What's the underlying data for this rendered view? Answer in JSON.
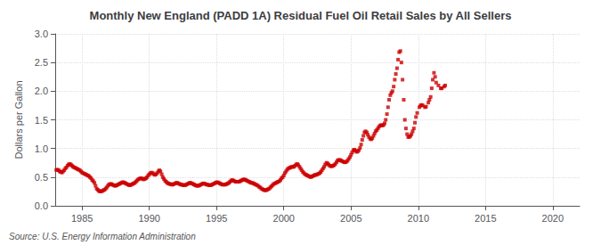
{
  "chart_data": {
    "type": "scatter",
    "title": "Monthly New England (PADD 1A) Residual Fuel Oil Retail Sales by All Sellers",
    "ylabel": "Dollars per Gallon",
    "annotation": "Source: U.S. Energy Information Administration",
    "color": "#cc0000",
    "marker": "square",
    "grid": true,
    "xlim": [
      1983.0,
      2022.0
    ],
    "ylim": [
      0.0,
      3.0
    ],
    "xticks": [
      1985,
      1990,
      1995,
      2000,
      2005,
      2010,
      2015,
      2020
    ],
    "yticks": [
      {
        "value": 0.0,
        "label": "0.0"
      },
      0.5,
      {
        "value": 1.0,
        "label": "1.0"
      },
      1.5,
      {
        "value": 2.0,
        "label": "2.0"
      },
      2.5,
      {
        "value": 3.0,
        "label": "3.0"
      }
    ],
    "x": [
      1983.08,
      1983.17,
      1983.25,
      1983.33,
      1983.42,
      1983.5,
      1983.58,
      1983.67,
      1983.75,
      1983.83,
      1983.92,
      1984.0,
      1984.08,
      1984.17,
      1984.25,
      1984.33,
      1984.42,
      1984.5,
      1984.58,
      1984.67,
      1984.75,
      1984.83,
      1984.92,
      1985.0,
      1985.08,
      1985.17,
      1985.25,
      1985.33,
      1985.42,
      1985.5,
      1985.58,
      1985.67,
      1985.75,
      1985.83,
      1985.92,
      1986.0,
      1986.08,
      1986.17,
      1986.25,
      1986.33,
      1986.42,
      1986.5,
      1986.58,
      1986.67,
      1986.75,
      1986.83,
      1986.92,
      1987.0,
      1987.08,
      1987.17,
      1987.25,
      1987.33,
      1987.42,
      1987.5,
      1987.58,
      1987.67,
      1987.75,
      1987.83,
      1987.92,
      1988.0,
      1988.08,
      1988.17,
      1988.25,
      1988.33,
      1988.42,
      1988.5,
      1988.58,
      1988.67,
      1988.75,
      1988.83,
      1988.92,
      1989.0,
      1989.08,
      1989.17,
      1989.25,
      1989.33,
      1989.42,
      1989.5,
      1989.58,
      1989.67,
      1989.75,
      1989.83,
      1989.92,
      1990.0,
      1990.08,
      1990.17,
      1990.25,
      1990.33,
      1990.42,
      1990.5,
      1990.58,
      1990.67,
      1990.75,
      1990.83,
      1990.92,
      1991.0,
      1991.08,
      1991.17,
      1991.25,
      1991.33,
      1991.42,
      1991.5,
      1991.58,
      1991.67,
      1991.75,
      1991.83,
      1991.92,
      1992.0,
      1992.08,
      1992.17,
      1992.25,
      1992.33,
      1992.42,
      1992.5,
      1992.58,
      1992.67,
      1992.75,
      1992.83,
      1992.92,
      1993.0,
      1993.08,
      1993.17,
      1993.25,
      1993.33,
      1993.42,
      1993.5,
      1993.58,
      1993.67,
      1993.75,
      1993.83,
      1993.92,
      1994.0,
      1994.08,
      1994.17,
      1994.25,
      1994.33,
      1994.42,
      1994.5,
      1994.58,
      1994.67,
      1994.75,
      1994.83,
      1994.92,
      1995.0,
      1995.08,
      1995.17,
      1995.25,
      1995.33,
      1995.42,
      1995.5,
      1995.58,
      1995.67,
      1995.75,
      1995.83,
      1995.92,
      1996.0,
      1996.08,
      1996.17,
      1996.25,
      1996.33,
      1996.42,
      1996.5,
      1996.58,
      1996.67,
      1996.75,
      1996.83,
      1996.92,
      1997.0,
      1997.08,
      1997.17,
      1997.25,
      1997.33,
      1997.42,
      1997.5,
      1997.58,
      1997.67,
      1997.75,
      1997.83,
      1997.92,
      1998.0,
      1998.08,
      1998.17,
      1998.25,
      1998.33,
      1998.42,
      1998.5,
      1998.58,
      1998.67,
      1998.75,
      1998.83,
      1998.92,
      1999.0,
      1999.08,
      1999.17,
      1999.25,
      1999.33,
      1999.42,
      1999.5,
      1999.58,
      1999.67,
      1999.75,
      1999.83,
      1999.92,
      2000.0,
      2000.08,
      2000.17,
      2000.25,
      2000.33,
      2000.42,
      2000.5,
      2000.58,
      2000.67,
      2000.75,
      2000.83,
      2000.92,
      2001.0,
      2001.08,
      2001.17,
      2001.25,
      2001.33,
      2001.42,
      2001.5,
      2001.58,
      2001.67,
      2001.75,
      2001.83,
      2001.92,
      2002.0,
      2002.08,
      2002.17,
      2002.25,
      2002.33,
      2002.42,
      2002.5,
      2002.58,
      2002.67,
      2002.75,
      2002.83,
      2002.92,
      2003.0,
      2003.08,
      2003.17,
      2003.25,
      2003.33,
      2003.42,
      2003.5,
      2003.58,
      2003.67,
      2003.75,
      2003.83,
      2003.92,
      2004.0,
      2004.08,
      2004.17,
      2004.25,
      2004.33,
      2004.42,
      2004.5,
      2004.58,
      2004.67,
      2004.75,
      2004.83,
      2004.92,
      2005.0,
      2005.08,
      2005.17,
      2005.25,
      2005.33,
      2005.42,
      2005.5,
      2005.58,
      2005.67,
      2005.75,
      2005.83,
      2005.92,
      2006.0,
      2006.08,
      2006.17,
      2006.25,
      2006.33,
      2006.42,
      2006.5,
      2006.58,
      2006.67,
      2006.75,
      2006.83,
      2006.92,
      2007.0,
      2007.08,
      2007.17,
      2007.25,
      2007.33,
      2007.42,
      2007.5,
      2007.58,
      2007.67,
      2007.75,
      2007.83,
      2007.92,
      2008.0,
      2008.08,
      2008.17,
      2008.25,
      2008.33,
      2008.42,
      2008.5,
      2008.58,
      2008.67,
      2008.75,
      2008.83,
      2008.92,
      2009.0,
      2009.08,
      2009.17,
      2009.25,
      2009.33,
      2009.42,
      2009.5,
      2009.58,
      2009.67,
      2009.75,
      2009.83,
      2009.92,
      2010.08,
      2010.17,
      2010.25,
      2010.33,
      2010.5,
      2010.58,
      2010.75,
      2010.83,
      2010.92,
      2011.0,
      2011.08,
      2011.17,
      2011.25,
      2011.33,
      2011.5,
      2011.67,
      2011.75,
      2011.92,
      2012.0
    ],
    "values": [
      0.625,
      0.63,
      0.62,
      0.6,
      0.59,
      0.58,
      0.6,
      0.62,
      0.65,
      0.67,
      0.7,
      0.72,
      0.73,
      0.72,
      0.7,
      0.68,
      0.67,
      0.66,
      0.65,
      0.64,
      0.63,
      0.62,
      0.6,
      0.58,
      0.57,
      0.56,
      0.55,
      0.54,
      0.53,
      0.52,
      0.5,
      0.48,
      0.45,
      0.43,
      0.4,
      0.35,
      0.3,
      0.28,
      0.26,
      0.25,
      0.25,
      0.26,
      0.27,
      0.28,
      0.3,
      0.32,
      0.35,
      0.37,
      0.38,
      0.38,
      0.37,
      0.36,
      0.35,
      0.35,
      0.36,
      0.37,
      0.38,
      0.39,
      0.4,
      0.41,
      0.41,
      0.4,
      0.39,
      0.38,
      0.37,
      0.36,
      0.36,
      0.37,
      0.38,
      0.39,
      0.4,
      0.42,
      0.44,
      0.46,
      0.47,
      0.48,
      0.48,
      0.47,
      0.46,
      0.47,
      0.48,
      0.5,
      0.53,
      0.55,
      0.57,
      0.58,
      0.57,
      0.55,
      0.54,
      0.55,
      0.57,
      0.6,
      0.62,
      0.6,
      0.55,
      0.5,
      0.47,
      0.44,
      0.42,
      0.4,
      0.39,
      0.38,
      0.38,
      0.37,
      0.37,
      0.38,
      0.39,
      0.4,
      0.4,
      0.39,
      0.38,
      0.37,
      0.37,
      0.36,
      0.36,
      0.36,
      0.37,
      0.38,
      0.39,
      0.4,
      0.4,
      0.39,
      0.38,
      0.37,
      0.36,
      0.35,
      0.35,
      0.35,
      0.36,
      0.37,
      0.38,
      0.39,
      0.39,
      0.38,
      0.37,
      0.37,
      0.36,
      0.36,
      0.36,
      0.37,
      0.38,
      0.39,
      0.4,
      0.41,
      0.41,
      0.4,
      0.39,
      0.38,
      0.37,
      0.37,
      0.37,
      0.37,
      0.38,
      0.39,
      0.4,
      0.42,
      0.44,
      0.45,
      0.44,
      0.43,
      0.42,
      0.42,
      0.42,
      0.42,
      0.43,
      0.44,
      0.45,
      0.46,
      0.46,
      0.45,
      0.44,
      0.43,
      0.42,
      0.41,
      0.4,
      0.4,
      0.39,
      0.38,
      0.37,
      0.36,
      0.35,
      0.33,
      0.32,
      0.3,
      0.29,
      0.28,
      0.27,
      0.27,
      0.28,
      0.29,
      0.3,
      0.32,
      0.34,
      0.36,
      0.38,
      0.39,
      0.4,
      0.41,
      0.42,
      0.43,
      0.45,
      0.48,
      0.5,
      0.53,
      0.57,
      0.6,
      0.63,
      0.65,
      0.66,
      0.67,
      0.68,
      0.68,
      0.68,
      0.7,
      0.72,
      0.73,
      0.71,
      0.68,
      0.65,
      0.62,
      0.59,
      0.57,
      0.55,
      0.54,
      0.53,
      0.52,
      0.51,
      0.5,
      0.51,
      0.52,
      0.53,
      0.54,
      0.54,
      0.55,
      0.56,
      0.57,
      0.59,
      0.62,
      0.65,
      0.68,
      0.72,
      0.75,
      0.74,
      0.72,
      0.7,
      0.69,
      0.69,
      0.7,
      0.71,
      0.73,
      0.76,
      0.79,
      0.8,
      0.8,
      0.79,
      0.78,
      0.77,
      0.76,
      0.76,
      0.77,
      0.79,
      0.82,
      0.85,
      0.89,
      0.93,
      0.97,
      0.98,
      0.96,
      0.94,
      0.95,
      0.97,
      1.01,
      1.07,
      1.15,
      1.22,
      1.28,
      1.3,
      1.28,
      1.24,
      1.2,
      1.17,
      1.16,
      1.18,
      1.22,
      1.26,
      1.3,
      1.32,
      1.35,
      1.38,
      1.4,
      1.41,
      1.4,
      1.41,
      1.44,
      1.5,
      1.6,
      1.72,
      1.85,
      1.93,
      1.97,
      2.0,
      2.08,
      2.2,
      2.3,
      2.4,
      2.55,
      2.68,
      2.7,
      2.5,
      2.2,
      1.85,
      1.5,
      1.35,
      1.25,
      1.2,
      1.2,
      1.22,
      1.25,
      1.3,
      1.35,
      1.45,
      1.55,
      1.62,
      1.72,
      1.75,
      1.76,
      1.75,
      1.72,
      1.73,
      1.8,
      1.85,
      1.9,
      2.05,
      2.2,
      2.32,
      2.25,
      2.15,
      2.1,
      2.05,
      2.05,
      2.08,
      2.1
    ]
  }
}
